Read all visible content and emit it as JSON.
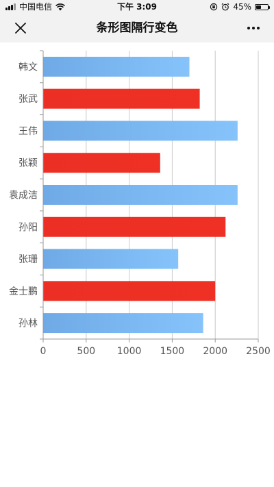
{
  "status_bar": {
    "carrier": "中国电信",
    "time": "下午 3:09",
    "battery_percent": "45%",
    "battery_level": 0.45
  },
  "nav": {
    "title": "条形图隔行变色",
    "close_icon": "close-icon",
    "more_icon": "more-icon"
  },
  "chart_data": {
    "type": "bar",
    "orientation": "horizontal",
    "categories": [
      "韩文",
      "张武",
      "王伟",
      "张颖",
      "袁成洁",
      "孙阳",
      "张珊",
      "金士鹏",
      "孙林"
    ],
    "values": [
      1700,
      1820,
      2260,
      1360,
      2260,
      2120,
      1570,
      2000,
      1860
    ],
    "xlim": [
      0,
      2500
    ],
    "x_ticks": [
      "0",
      "500",
      "1000",
      "1500",
      "2000",
      "2500"
    ],
    "grid": true,
    "legend": "none",
    "colors": {
      "odd_row": "#7cb5ec",
      "even_row": "#ee3124"
    }
  }
}
